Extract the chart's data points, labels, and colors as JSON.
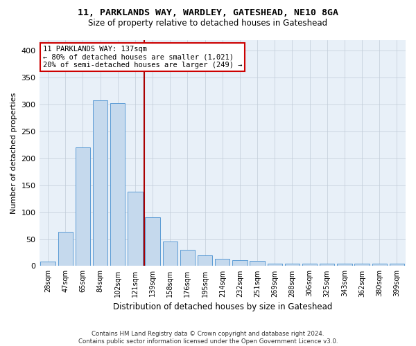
{
  "title_line1": "11, PARKLANDS WAY, WARDLEY, GATESHEAD, NE10 8GA",
  "title_line2": "Size of property relative to detached houses in Gateshead",
  "xlabel": "Distribution of detached houses by size in Gateshead",
  "ylabel": "Number of detached properties",
  "categories": [
    "28sqm",
    "47sqm",
    "65sqm",
    "84sqm",
    "102sqm",
    "121sqm",
    "139sqm",
    "158sqm",
    "176sqm",
    "195sqm",
    "214sqm",
    "232sqm",
    "251sqm",
    "269sqm",
    "288sqm",
    "306sqm",
    "325sqm",
    "343sqm",
    "362sqm",
    "380sqm",
    "399sqm"
  ],
  "values": [
    8,
    63,
    220,
    307,
    303,
    138,
    90,
    46,
    30,
    20,
    14,
    11,
    10,
    4,
    4,
    4,
    4,
    4,
    4,
    4,
    4
  ],
  "highlight_index": 6,
  "highlight_color": "#aa0000",
  "bar_color": "#c5d9ed",
  "bar_edge_color": "#5b9bd5",
  "annotation_box_text": "11 PARKLANDS WAY: 137sqm\n← 80% of detached houses are smaller (1,021)\n20% of semi-detached houses are larger (249) →",
  "annotation_box_color": "#cc0000",
  "ylim": [
    0,
    420
  ],
  "yticks": [
    0,
    50,
    100,
    150,
    200,
    250,
    300,
    350,
    400
  ],
  "footnote": "Contains HM Land Registry data © Crown copyright and database right 2024.\nContains public sector information licensed under the Open Government Licence v3.0.",
  "bg_color": "#ffffff",
  "plot_bg_color": "#e8f0f8",
  "grid_color": "#c0ccd8"
}
